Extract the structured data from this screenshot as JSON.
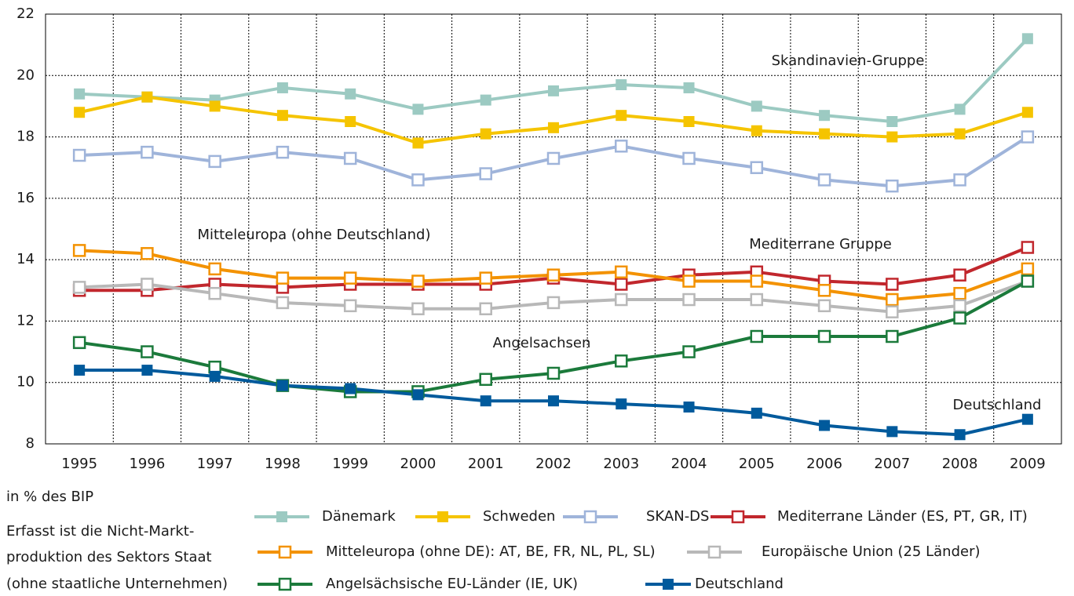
{
  "chart_data": {
    "type": "line",
    "categories": [
      "1995",
      "1996",
      "1997",
      "1998",
      "1999",
      "2000",
      "2001",
      "2002",
      "2003",
      "2004",
      "2005",
      "2006",
      "2007",
      "2008",
      "2009"
    ],
    "ylim": [
      8,
      22
    ],
    "yticks": [
      8,
      10,
      12,
      14,
      16,
      18,
      20,
      22
    ],
    "grid": true,
    "series": [
      {
        "name": "Dänemark",
        "color": "#9ccac2",
        "marker": "filled",
        "values": [
          19.4,
          19.3,
          19.2,
          19.6,
          19.4,
          18.9,
          19.2,
          19.5,
          19.7,
          19.6,
          19.0,
          18.7,
          18.5,
          18.9,
          21.2
        ]
      },
      {
        "name": "Schweden",
        "color": "#f5c400",
        "marker": "filled",
        "values": [
          18.8,
          19.3,
          19.0,
          18.7,
          18.5,
          17.8,
          18.1,
          18.3,
          18.7,
          18.5,
          18.2,
          18.1,
          18.0,
          18.1,
          18.8
        ]
      },
      {
        "name": "SKAN-DS",
        "color": "#9fb4da",
        "marker": "open",
        "values": [
          17.4,
          17.5,
          17.2,
          17.5,
          17.3,
          16.6,
          16.8,
          17.3,
          17.7,
          17.3,
          17.0,
          16.6,
          16.4,
          16.6,
          18.0
        ]
      },
      {
        "name": "Mediterrane Länder (ES, PT, GR, IT)",
        "color": "#c1272d",
        "marker": "open",
        "values": [
          13.0,
          13.0,
          13.2,
          13.1,
          13.2,
          13.2,
          13.2,
          13.4,
          13.2,
          13.5,
          13.6,
          13.3,
          13.2,
          13.5,
          14.4
        ]
      },
      {
        "name": "Mitteleuropa (ohne DE): AT, BE, FR, NL, PL, SL)",
        "color": "#f39200",
        "marker": "open",
        "values": [
          14.3,
          14.2,
          13.7,
          13.4,
          13.4,
          13.3,
          13.4,
          13.5,
          13.6,
          13.3,
          13.3,
          13.0,
          12.7,
          12.9,
          13.7
        ]
      },
      {
        "name": "Europäische Union (25 Länder)",
        "color": "#b8b8b8",
        "marker": "open",
        "values": [
          13.1,
          13.2,
          12.9,
          12.6,
          12.5,
          12.4,
          12.4,
          12.6,
          12.7,
          12.7,
          12.7,
          12.5,
          12.3,
          12.5,
          13.3
        ]
      },
      {
        "name": "Angelsächsische EU-Länder (IE, UK)",
        "color": "#1b7a3b",
        "marker": "open",
        "values": [
          11.3,
          11.0,
          10.5,
          9.9,
          9.7,
          9.7,
          10.1,
          10.3,
          10.7,
          11.0,
          11.5,
          11.5,
          11.5,
          12.1,
          13.3
        ]
      },
      {
        "name": "Deutschland",
        "color": "#005a9c",
        "marker": "filled",
        "values": [
          10.4,
          10.4,
          10.2,
          9.9,
          9.8,
          9.6,
          9.4,
          9.4,
          9.3,
          9.2,
          9.0,
          8.6,
          8.4,
          8.3,
          8.8
        ]
      }
    ],
    "annotations": [
      "Skandinavien-Gruppe",
      "Mitteleuropa (ohne Deutschland)",
      "Mediterrane Gruppe",
      "Angelsachsen",
      "Deutschland"
    ],
    "unit_note": "in % des BIP",
    "footnote": [
      "Erfasst ist die Nicht-Markt-",
      "produktion des Sektors Staat",
      "(ohne staatliche Unternehmen)"
    ]
  }
}
